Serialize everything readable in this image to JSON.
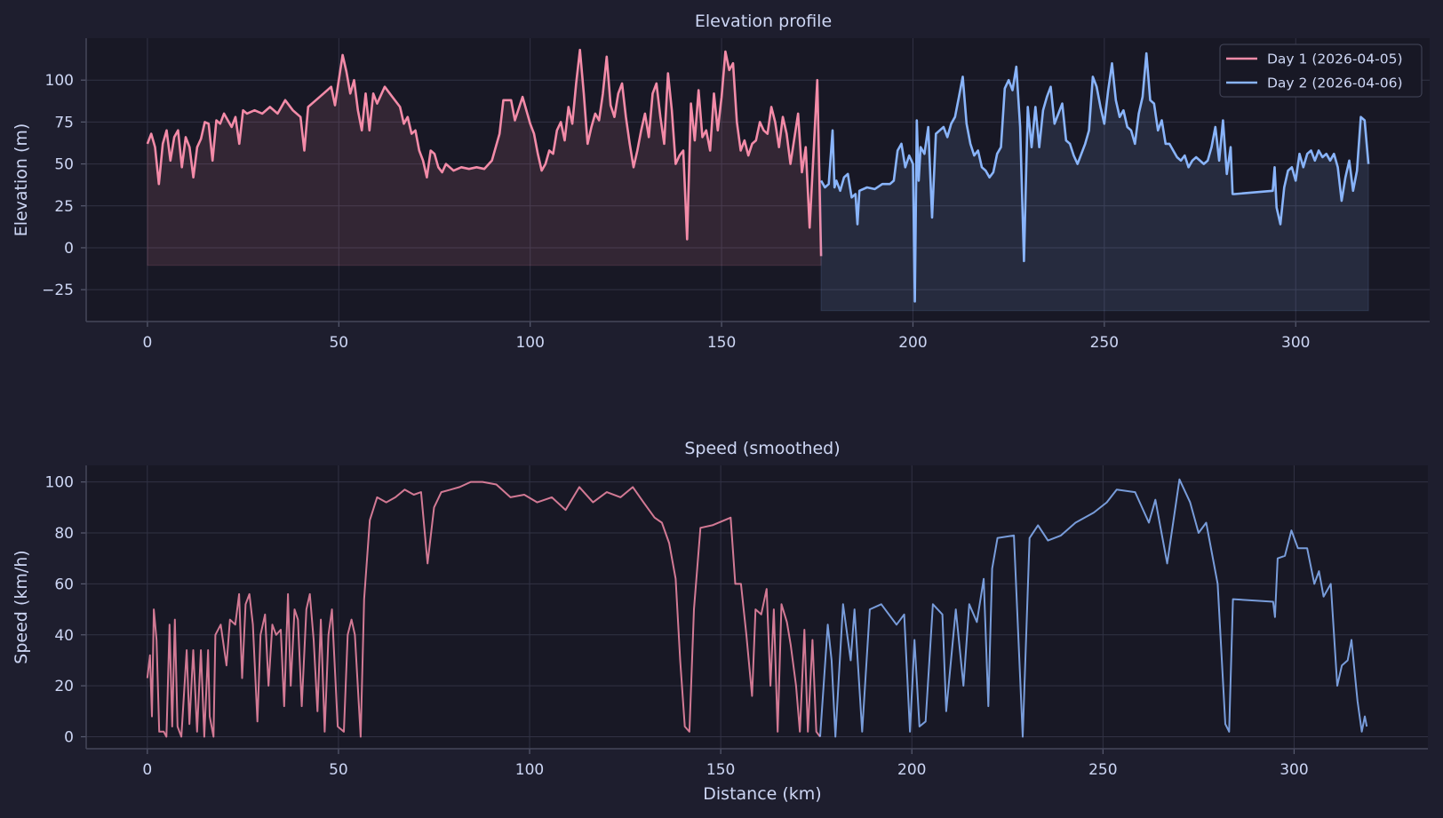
{
  "colors": {
    "background": "#1e1e2e",
    "axes_background": "#181825",
    "grid": "#313244",
    "text": "#cdd6f4",
    "day1": "#f38ba8",
    "day2": "#89b4fa"
  },
  "chart_data": [
    {
      "type": "area",
      "title": "Elevation profile",
      "xlabel": "",
      "ylabel": "Elevation (m)",
      "xlim": [
        -16,
        335
      ],
      "ylim": [
        -44,
        125
      ],
      "xticks": [
        0,
        50,
        100,
        150,
        200,
        250,
        300
      ],
      "yticks": [
        -25,
        0,
        25,
        50,
        75,
        100
      ],
      "ytick_labels": [
        "−25",
        "0",
        "25",
        "50",
        "75",
        "100"
      ],
      "grid": true,
      "legend": "top-right",
      "series": [
        {
          "name": "Day 1  (2026-04-05)",
          "color": "#f38ba8",
          "x": [
            0,
            1,
            2,
            3,
            4,
            5,
            6,
            7,
            8,
            9,
            10,
            11,
            12,
            13,
            14,
            15,
            16,
            17,
            18,
            19,
            20,
            21,
            22,
            23,
            24,
            25,
            26,
            28,
            30,
            32,
            34,
            36,
            38,
            40,
            41,
            42,
            44,
            46,
            48,
            49,
            50,
            51,
            52,
            53,
            54,
            55,
            56,
            57,
            58,
            59,
            60,
            62,
            64,
            66,
            67,
            68,
            69,
            70,
            71,
            72,
            73,
            74,
            75,
            76,
            77,
            78,
            80,
            82,
            84,
            86,
            88,
            90,
            92,
            93,
            95,
            96,
            98,
            100,
            101,
            102,
            103,
            104,
            105,
            106,
            107,
            108,
            109,
            110,
            111,
            112,
            113,
            114,
            115,
            116,
            117,
            118,
            119,
            120,
            121,
            122,
            123,
            124,
            125,
            126,
            127,
            128,
            129,
            130,
            131,
            132,
            133,
            134,
            135,
            136,
            137,
            138,
            139,
            140,
            141,
            142,
            143,
            144,
            145,
            146,
            147,
            148,
            149,
            150,
            151,
            152,
            153,
            154,
            155,
            156,
            157,
            158,
            159,
            160,
            161,
            162,
            163,
            164,
            165,
            166,
            167,
            168,
            169,
            170,
            171,
            172,
            173,
            174,
            175,
            176
          ],
          "y": [
            62,
            68,
            60,
            38,
            62,
            70,
            52,
            66,
            70,
            48,
            66,
            60,
            42,
            60,
            65,
            75,
            74,
            52,
            76,
            74,
            80,
            76,
            72,
            78,
            62,
            82,
            80,
            82,
            80,
            84,
            80,
            88,
            82,
            78,
            58,
            84,
            88,
            92,
            96,
            85,
            100,
            115,
            105,
            92,
            100,
            82,
            70,
            92,
            70,
            92,
            86,
            96,
            90,
            84,
            74,
            78,
            68,
            70,
            58,
            52,
            42,
            58,
            56,
            48,
            45,
            50,
            46,
            48,
            47,
            48,
            47,
            52,
            68,
            88,
            88,
            76,
            90,
            74,
            68,
            56,
            46,
            50,
            58,
            56,
            70,
            75,
            64,
            84,
            74,
            98,
            118,
            92,
            62,
            72,
            80,
            76,
            92,
            114,
            85,
            78,
            92,
            98,
            78,
            62,
            48,
            58,
            70,
            80,
            66,
            92,
            98,
            78,
            62,
            104,
            82,
            50,
            55,
            58,
            5,
            86,
            64,
            94,
            66,
            70,
            58,
            92,
            70,
            90,
            117,
            106,
            110,
            75,
            58,
            64,
            55,
            62,
            64,
            75,
            70,
            68,
            84,
            75,
            60,
            78,
            68,
            50,
            65,
            80,
            45,
            60,
            12,
            56,
            100,
            -5
          ]
        },
        {
          "name": "Day 2  (2026-04-06)",
          "color": "#89b4fa",
          "x": [
            176,
            177,
            178,
            179,
            179.5,
            180,
            181,
            182,
            183,
            184,
            185,
            185.5,
            186,
            188,
            190,
            192,
            194,
            195,
            196,
            197,
            198,
            199,
            200,
            200.5,
            201,
            201.5,
            202,
            203,
            204,
            205,
            206,
            207,
            208,
            209,
            210,
            211,
            212,
            213,
            214,
            215,
            216,
            217,
            218,
            219,
            220,
            221,
            222,
            223,
            224,
            225,
            226,
            227,
            228,
            229,
            230,
            231,
            232,
            233,
            234,
            235,
            236,
            237,
            238,
            239,
            240,
            241,
            242,
            243,
            244,
            245,
            246,
            247,
            248,
            249,
            250,
            251,
            252,
            253,
            254,
            255,
            256,
            257,
            258,
            259,
            260,
            261,
            262,
            263,
            264,
            265,
            266,
            267,
            268,
            269,
            270,
            271,
            272,
            273,
            274,
            276,
            277,
            278,
            279,
            280,
            281,
            282,
            283,
            283.5,
            284,
            294,
            294.5,
            295,
            296,
            297,
            298,
            299,
            300,
            301,
            302,
            303,
            304,
            305,
            306,
            307,
            308,
            309,
            310,
            311,
            312,
            313,
            314,
            315,
            316,
            317,
            318,
            319
          ],
          "y": [
            40,
            36,
            38,
            70,
            36,
            40,
            34,
            42,
            44,
            30,
            32,
            14,
            34,
            36,
            35,
            38,
            38,
            40,
            58,
            62,
            48,
            55,
            50,
            -32,
            76,
            40,
            60,
            56,
            72,
            18,
            68,
            70,
            72,
            66,
            74,
            78,
            90,
            102,
            74,
            62,
            55,
            58,
            48,
            46,
            42,
            45,
            56,
            60,
            95,
            100,
            94,
            108,
            72,
            -8,
            84,
            60,
            84,
            60,
            82,
            90,
            96,
            74,
            80,
            86,
            64,
            62,
            55,
            50,
            56,
            62,
            70,
            102,
            96,
            84,
            74,
            94,
            110,
            88,
            78,
            82,
            72,
            70,
            62,
            80,
            90,
            116,
            88,
            86,
            70,
            76,
            62,
            62,
            58,
            54,
            52,
            55,
            48,
            52,
            54,
            50,
            52,
            60,
            72,
            52,
            76,
            44,
            60,
            32,
            32,
            34,
            48,
            24,
            14,
            36,
            46,
            48,
            40,
            56,
            48,
            56,
            58,
            52,
            58,
            54,
            56,
            52,
            56,
            48,
            28,
            42,
            52,
            34,
            46,
            78,
            76,
            50
          ]
        }
      ]
    },
    {
      "type": "line",
      "title": "Speed (smoothed)",
      "xlabel": "Distance (km)",
      "ylabel": "Speed (km/h)",
      "xlim": [
        -16,
        335
      ],
      "ylim": [
        -4.7,
        106.5
      ],
      "xticks": [
        0,
        50,
        100,
        150,
        200,
        250,
        300
      ],
      "yticks": [
        0,
        20,
        40,
        60,
        80,
        100
      ],
      "ytick_labels": [
        "0",
        "20",
        "40",
        "60",
        "80",
        "100"
      ],
      "grid": true,
      "series": [
        {
          "color": "#f38ba8",
          "x": [
            0,
            0.7,
            1.2,
            1.7,
            2.4,
            3.1,
            4.3,
            5,
            5.8,
            6.5,
            7.2,
            7.9,
            8.9,
            10.3,
            11,
            12,
            13,
            14,
            14.9,
            15.9,
            16.3,
            17.3,
            17.8,
            19.2,
            20.7,
            21.6,
            23,
            24,
            24.8,
            25.7,
            26.7,
            27.6,
            28.8,
            29.6,
            30.8,
            31.7,
            32.7,
            33.7,
            34.9,
            35.8,
            36.8,
            37.5,
            38.5,
            39.4,
            40.4,
            41.6,
            42.5,
            43.5,
            44.5,
            45.4,
            46.4,
            47.4,
            48.3,
            49.8,
            51.4,
            52.4,
            53.4,
            54.3,
            55.8,
            56.7,
            58.2,
            60.1,
            62.5,
            64.9,
            67.3,
            69.7,
            71.6,
            73.3,
            75,
            76.9,
            79.3,
            81.7,
            84.6,
            87.7,
            91.3,
            95,
            98.6,
            102,
            105.8,
            109.4,
            113,
            116.6,
            120.2,
            123.8,
            127,
            129.8,
            132.7,
            134.6,
            136.5,
            138.2,
            139.4,
            140.6,
            141.8,
            143,
            144.7,
            147.8,
            152.6,
            153.8,
            155.3,
            156.7,
            158.2,
            159.1,
            160.6,
            162,
            163,
            163.9,
            164.9,
            165.9,
            167.3,
            168.3,
            169.7,
            170.7,
            171.9,
            172.8,
            174,
            175,
            176
          ],
          "y": [
            23,
            32,
            8,
            50,
            38,
            2,
            2,
            0,
            44,
            4,
            46,
            4,
            0,
            34,
            5,
            34,
            2,
            34,
            0,
            34,
            8,
            0,
            40,
            44,
            28,
            46,
            44,
            56,
            23,
            52,
            56,
            44,
            6,
            40,
            48,
            20,
            44,
            40,
            42,
            12,
            56,
            20,
            50,
            46,
            12,
            50,
            56,
            38,
            10,
            46,
            2,
            40,
            50,
            4,
            2,
            40,
            46,
            40,
            0,
            54,
            85,
            94,
            92,
            94,
            97,
            95,
            96,
            68,
            90,
            96,
            97,
            98,
            100,
            100,
            99,
            94,
            95,
            92,
            94,
            89,
            98,
            92,
            96,
            94,
            98,
            92,
            86,
            84,
            76,
            62,
            30,
            4,
            2,
            50,
            82,
            83,
            86,
            60,
            60,
            40,
            16,
            50,
            48,
            58,
            20,
            50,
            2,
            52,
            45,
            36,
            20,
            2,
            42,
            2,
            38,
            2,
            0
          ]
        },
        {
          "color": "#89b4fa",
          "x": [
            176,
            178,
            179,
            180,
            182,
            184,
            185,
            187,
            189,
            192,
            196,
            198,
            199.5,
            200.7,
            202,
            203.6,
            205.5,
            208,
            209,
            211.5,
            213.5,
            215,
            217,
            218.8,
            220,
            221,
            222.4,
            226.7,
            229,
            230.8,
            233,
            235.6,
            239,
            242.8,
            247.6,
            251,
            253.6,
            258.4,
            262,
            263.7,
            266.8,
            270,
            272.8,
            275,
            277,
            280,
            282,
            283,
            284,
            294.5,
            295,
            295.7,
            297.6,
            299.3,
            301,
            303.4,
            305.3,
            306.5,
            307.7,
            309.6,
            311.3,
            312.5,
            314,
            315,
            316.6,
            317.7,
            318.5,
            319
          ],
          "y": [
            0,
            44,
            30,
            0,
            52,
            30,
            50,
            2,
            50,
            52,
            44,
            48,
            2,
            38,
            4,
            6,
            52,
            48,
            10,
            50,
            20,
            52,
            45,
            62,
            12,
            66,
            78,
            79,
            0,
            78,
            83,
            77,
            79,
            84,
            88,
            92,
            97,
            96,
            84,
            93,
            68,
            101,
            92,
            80,
            84,
            60,
            5,
            2,
            54,
            53,
            47,
            70,
            71,
            81,
            74,
            74,
            60,
            65,
            55,
            60,
            20,
            28,
            30,
            38,
            14,
            2,
            8,
            4
          ]
        }
      ]
    }
  ]
}
